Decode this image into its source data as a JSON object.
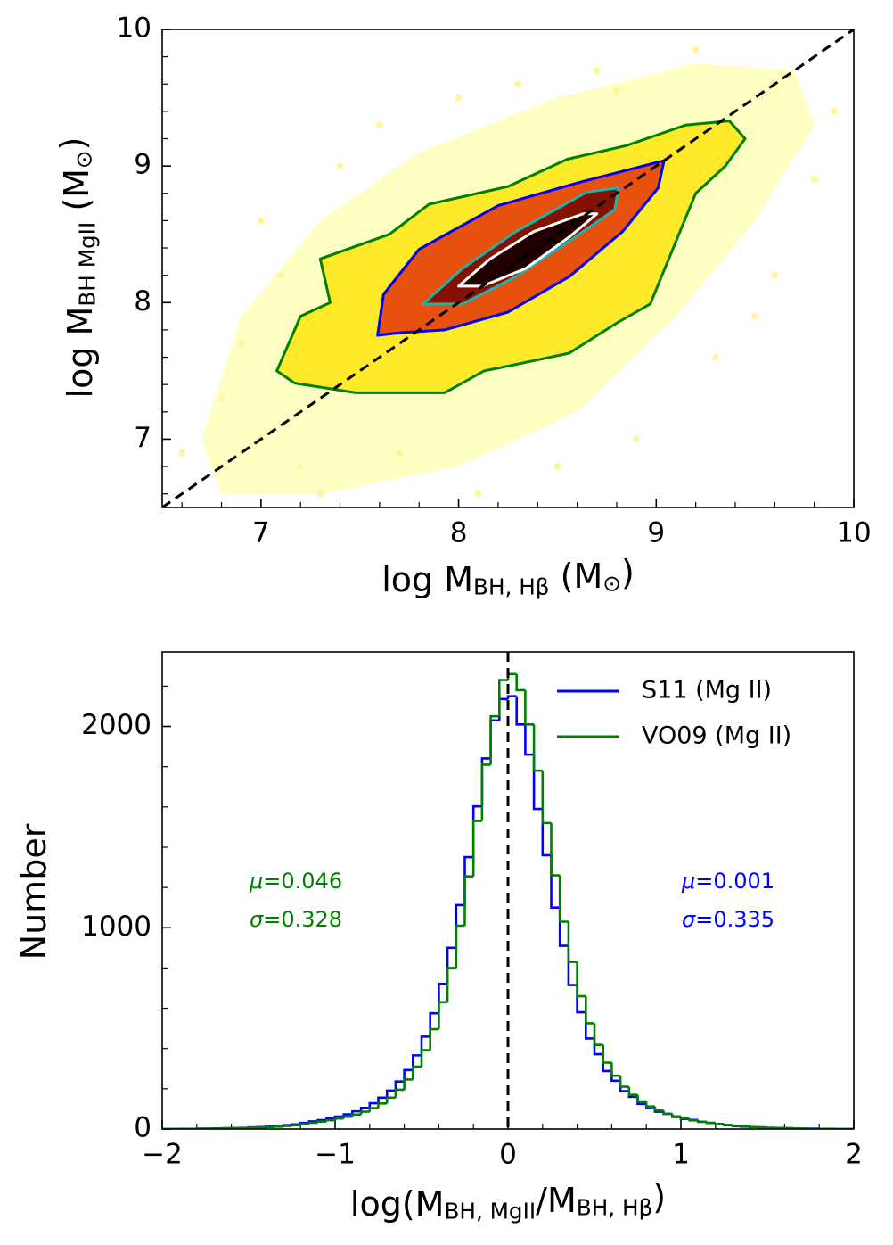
{
  "chart_data": [
    {
      "type": "contour",
      "xlabel": [
        {
          "text": "log M"
        },
        {
          "text": "BH, Hβ",
          "sub": true
        },
        {
          "text": " (M"
        },
        {
          "text": "⊙",
          "sub": true
        },
        {
          "text": ")"
        }
      ],
      "ylabel": [
        {
          "text": "log M"
        },
        {
          "text": "BH MgII",
          "sub": true
        },
        {
          "text": " (M"
        },
        {
          "text": "⊙",
          "sub": true
        },
        {
          "text": ")"
        }
      ],
      "xlim": [
        6.5,
        10
      ],
      "ylim": [
        6.5,
        10
      ],
      "xticks": [
        7,
        8,
        9,
        10
      ],
      "yticks": [
        7,
        8,
        9,
        10
      ],
      "xminor": [
        6.6,
        6.8,
        7.2,
        7.4,
        7.6,
        7.8,
        8.2,
        8.4,
        8.6,
        8.8,
        9.2,
        9.4,
        9.6,
        9.8
      ],
      "yminor": [
        6.6,
        6.8,
        7.2,
        7.4,
        7.6,
        7.8,
        8.2,
        8.4,
        8.6,
        8.8,
        9.2,
        9.4,
        9.6,
        9.8
      ],
      "points": {
        "color": "#fff7a0",
        "x": [
          6.9,
          7.0,
          7.2,
          7.4,
          7.6,
          6.8,
          7.3,
          8.0,
          8.3,
          8.7,
          9.2,
          9.6,
          9.8,
          9.6,
          9.3,
          8.9,
          8.5,
          8.1,
          7.7,
          7.0,
          9.9,
          6.6,
          8.8,
          9.5,
          7.1
        ],
        "y": [
          7.7,
          8.6,
          6.8,
          9.0,
          9.3,
          7.3,
          6.6,
          9.5,
          9.6,
          9.7,
          9.85,
          9.6,
          8.9,
          8.2,
          7.6,
          7.0,
          6.8,
          6.6,
          6.9,
          7.0,
          9.4,
          6.9,
          9.55,
          7.9,
          8.2
        ]
      },
      "series": [
        {
          "fill": "#ffffb8",
          "x": [
            6.7,
            6.9,
            7.3,
            7.8,
            8.5,
            9.2,
            9.7,
            9.8,
            9.5,
            9.1,
            8.6,
            8.0,
            7.3,
            6.8
          ],
          "y": [
            7.0,
            7.9,
            8.6,
            9.1,
            9.5,
            9.75,
            9.7,
            9.3,
            8.6,
            7.9,
            7.2,
            6.8,
            6.6,
            6.6
          ]
        },
        {
          "color": "#008000",
          "fill": "#ffe81a",
          "x": [
            7.08,
            7.2,
            7.35,
            7.3,
            7.65,
            7.85,
            8.25,
            8.55,
            8.85,
            9.15,
            9.37,
            9.45,
            9.35,
            9.2,
            8.97,
            8.8,
            8.56,
            8.3,
            8.13,
            7.93,
            7.48,
            7.17
          ],
          "y": [
            7.5,
            7.9,
            8.0,
            8.32,
            8.5,
            8.72,
            8.85,
            9.05,
            9.15,
            9.3,
            9.33,
            9.2,
            9.0,
            8.8,
            7.99,
            7.85,
            7.63,
            7.55,
            7.5,
            7.34,
            7.34,
            7.41
          ]
        },
        {
          "color": "#0000ff",
          "fill": "#e4400a",
          "x": [
            7.59,
            7.62,
            7.8,
            8.2,
            8.61,
            9.04,
            9.01,
            8.83,
            8.56,
            8.25,
            7.93,
            7.71
          ],
          "y": [
            7.76,
            8.06,
            8.39,
            8.71,
            8.88,
            9.04,
            8.84,
            8.52,
            8.19,
            7.93,
            7.8,
            7.78
          ]
        },
        {
          "color": "#20b2aa",
          "fill": "#7a0a00",
          "x": [
            7.82,
            8.02,
            8.29,
            8.65,
            8.81,
            8.79,
            8.56,
            8.29,
            8.02
          ],
          "y": [
            7.99,
            8.25,
            8.52,
            8.81,
            8.84,
            8.68,
            8.45,
            8.19,
            7.99
          ]
        },
        {
          "color": "#ffffff",
          "fill": "#150000",
          "x": [
            8.0,
            8.16,
            8.38,
            8.63,
            8.7,
            8.56,
            8.34,
            8.12
          ],
          "y": [
            8.12,
            8.32,
            8.52,
            8.65,
            8.65,
            8.48,
            8.25,
            8.12
          ]
        }
      ],
      "reference_line": {
        "color": "#000000",
        "dashed": true,
        "x": [
          6.5,
          10
        ],
        "y": [
          6.5,
          10
        ]
      }
    },
    {
      "type": "histogram",
      "xlabel": [
        {
          "text": "log(M"
        },
        {
          "text": "BH, MgII",
          "sub": true
        },
        {
          "text": "/M"
        },
        {
          "text": "BH, Hβ",
          "sub": true
        },
        {
          "text": ")"
        }
      ],
      "ylabel": [
        {
          "text": "Number"
        }
      ],
      "xlim": [
        -2,
        2
      ],
      "ylim": [
        0,
        2370
      ],
      "xticks": [
        {
          "value": -2,
          "label": "−2"
        },
        {
          "value": -1,
          "label": "−1"
        },
        0,
        1,
        2
      ],
      "yticks": [
        0,
        1000,
        2000
      ],
      "xminor": [
        -1.8,
        -1.6,
        -1.4,
        -1.2,
        -0.8,
        -0.6,
        -0.4,
        -0.2,
        0.2,
        0.4,
        0.6,
        0.8,
        1.2,
        1.4,
        1.6,
        1.8
      ],
      "yminor": [
        200,
        400,
        600,
        800,
        1200,
        1400,
        1600,
        1800,
        2200
      ],
      "vline": 0,
      "legend": "upper right",
      "bins": [
        -2,
        -1.95,
        -1.9,
        -1.85,
        -1.8,
        -1.75,
        -1.7,
        -1.65,
        -1.6,
        -1.55,
        -1.5,
        -1.45,
        -1.4,
        -1.35,
        -1.3,
        -1.25,
        -1.2,
        -1.15,
        -1.1,
        -1.05,
        -1,
        -0.95,
        -0.9,
        -0.85,
        -0.8,
        -0.75,
        -0.7,
        -0.65,
        -0.6,
        -0.55,
        -0.5,
        -0.45,
        -0.4,
        -0.35,
        -0.3,
        -0.25,
        -0.2,
        -0.15,
        -0.1,
        -0.05,
        0,
        0.05,
        0.1,
        0.15,
        0.2,
        0.25,
        0.3,
        0.35,
        0.4,
        0.45,
        0.5,
        0.55,
        0.6,
        0.65,
        0.7,
        0.75,
        0.8,
        0.85,
        0.9,
        0.95,
        1,
        1.05,
        1.1,
        1.15,
        1.2,
        1.25,
        1.3,
        1.35,
        1.4,
        1.45,
        1.5,
        1.55,
        1.6,
        1.65,
        1.7,
        1.75,
        1.8,
        1.85,
        1.9,
        1.95,
        2
      ],
      "series": [
        {
          "name": "S11 (Mg II)",
          "color": "#0000ff",
          "values": [
            0,
            0,
            1,
            1,
            2,
            2,
            3,
            4,
            5,
            6,
            8,
            10,
            12,
            15,
            19,
            23,
            30,
            38,
            44,
            52,
            62,
            73,
            88,
            105,
            128,
            156,
            191,
            236,
            293,
            366,
            459,
            575,
            721,
            900,
            1112,
            1351,
            1603,
            1841,
            2030,
            2136,
            2150,
            2010,
            1860,
            1590,
            1360,
            1100,
            910,
            715,
            580,
            450,
            372,
            288,
            240,
            188,
            160,
            125,
            108,
            86,
            75,
            60,
            50,
            45,
            36,
            30,
            24,
            19,
            14,
            12,
            10,
            8,
            6,
            5,
            4,
            3,
            2,
            2,
            1,
            1,
            0,
            0
          ]
        },
        {
          "name": "VO09 (Mg II)",
          "color": "#008000",
          "values": [
            0,
            0,
            0,
            1,
            1,
            2,
            2,
            3,
            4,
            5,
            7,
            8,
            10,
            12,
            15,
            19,
            24,
            31,
            37,
            44,
            52,
            61,
            72,
            86,
            104,
            127,
            156,
            195,
            246,
            310,
            392,
            496,
            630,
            800,
            1010,
            1255,
            1530,
            1810,
            2050,
            2230,
            2260,
            2180,
            2010,
            1780,
            1520,
            1260,
            1030,
            830,
            660,
            525,
            418,
            330,
            265,
            210,
            170,
            137,
            112,
            92,
            76,
            63,
            52,
            43,
            36,
            30,
            25,
            20,
            16,
            13,
            10,
            8,
            6,
            5,
            4,
            3,
            2,
            1,
            1,
            1,
            0,
            0
          ]
        }
      ],
      "annotations": [
        {
          "color": "#008000",
          "parts": [
            {
              "text": "μ",
              "italic": true
            },
            {
              "text": "=0.046"
            }
          ]
        },
        {
          "color": "#008000",
          "parts": [
            {
              "text": "σ",
              "italic": true
            },
            {
              "text": "=0.328"
            }
          ]
        },
        {
          "color": "#0000ff",
          "parts": [
            {
              "text": "μ",
              "italic": true
            },
            {
              "text": "=0.001"
            }
          ]
        },
        {
          "color": "#0000ff",
          "parts": [
            {
              "text": "σ",
              "italic": true
            },
            {
              "text": "=0.335"
            }
          ]
        }
      ]
    }
  ]
}
